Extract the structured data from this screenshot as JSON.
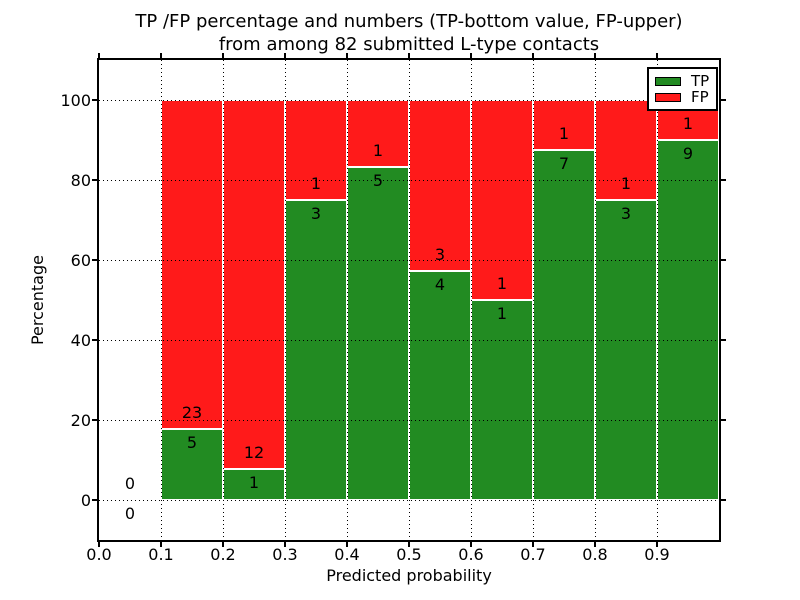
{
  "chart_data": {
    "type": "bar",
    "stacked": true,
    "title_line1": "TP /FP percentage and numbers (TP-bottom value, FP-upper)",
    "title_line2": "from among 82 submitted L-type contacts",
    "xlabel": "Predicted probability",
    "ylabel": "Percentage",
    "xlim": [
      0.0,
      1.0
    ],
    "ylim": [
      -10,
      110
    ],
    "x_tick_values": [
      0.0,
      0.1,
      0.2,
      0.3,
      0.4,
      0.5,
      0.6,
      0.7,
      0.8,
      0.9
    ],
    "x_tick_labels": [
      "0.0",
      "0.1",
      "0.2",
      "0.3",
      "0.4",
      "0.5",
      "0.6",
      "0.7",
      "0.8",
      "0.9"
    ],
    "y_tick_values": [
      0,
      20,
      40,
      60,
      80,
      100
    ],
    "y_tick_labels": [
      "0",
      "20",
      "40",
      "60",
      "80",
      "100"
    ],
    "grid": "dotted",
    "bin_width": 0.1,
    "bins": [
      {
        "x_start": 0.0,
        "tp": 0,
        "fp": 0,
        "tp_pct": null
      },
      {
        "x_start": 0.1,
        "tp": 5,
        "fp": 23,
        "tp_pct": 17.9
      },
      {
        "x_start": 0.2,
        "tp": 1,
        "fp": 12,
        "tp_pct": 7.7
      },
      {
        "x_start": 0.3,
        "tp": 3,
        "fp": 1,
        "tp_pct": 75.0
      },
      {
        "x_start": 0.4,
        "tp": 5,
        "fp": 1,
        "tp_pct": 83.3
      },
      {
        "x_start": 0.5,
        "tp": 4,
        "fp": 3,
        "tp_pct": 57.1
      },
      {
        "x_start": 0.6,
        "tp": 1,
        "fp": 1,
        "tp_pct": 50.0
      },
      {
        "x_start": 0.7,
        "tp": 7,
        "fp": 1,
        "tp_pct": 87.5
      },
      {
        "x_start": 0.8,
        "tp": 3,
        "fp": 1,
        "tp_pct": 75.0
      },
      {
        "x_start": 0.9,
        "tp": 9,
        "fp": 1,
        "tp_pct": 90.0
      }
    ],
    "legend": {
      "position": "upper-right",
      "entries": [
        {
          "label": "TP",
          "color": "#228b22"
        },
        {
          "label": "FP",
          "color": "#ff1a1a"
        }
      ]
    },
    "colors": {
      "tp_bar": "#228b22",
      "fp_bar": "#ff1a1a",
      "bar_edge": "#ffffff",
      "grid": "#000000",
      "text": "#000000",
      "background": "#ffffff"
    }
  }
}
